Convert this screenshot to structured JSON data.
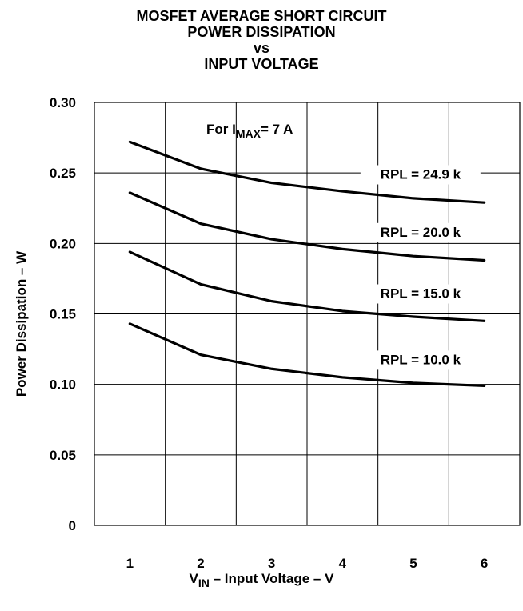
{
  "title": {
    "line1": "MOSFET AVERAGE SHORT CIRCUIT",
    "line2": "POWER DISSIPATION",
    "line3": "vs",
    "line4": "INPUT VOLTAGE"
  },
  "annotation": {
    "prefix": "For I",
    "subscript": "MAX",
    "suffix": "= 7 A"
  },
  "xlabel": {
    "main": "V",
    "subscript": "IN",
    "rest": " – Input Voltage – V"
  },
  "ylabel": "Power Dissipation – W",
  "chart_data": {
    "type": "line",
    "title": "MOSFET AVERAGE SHORT CIRCUIT POWER DISSIPATION vs INPUT VOLTAGE",
    "xlabel": "VIN – Input Voltage – V",
    "ylabel": "Power Dissipation – W",
    "xlim": [
      0.5,
      6.5
    ],
    "ylim": [
      0,
      0.3
    ],
    "grid": true,
    "x_ticks": [
      "1",
      "2",
      "3",
      "4",
      "5",
      "6"
    ],
    "y_ticks": [
      "0",
      "0.05",
      "0.10",
      "0.15",
      "0.20",
      "0.25",
      "0.30"
    ],
    "x": [
      1,
      2,
      3,
      4,
      5,
      6
    ],
    "series": [
      {
        "name": "RPL = 24.9 k",
        "values": [
          0.272,
          0.253,
          0.243,
          0.237,
          0.232,
          0.229
        ]
      },
      {
        "name": "RPL = 20.0 k",
        "values": [
          0.236,
          0.214,
          0.203,
          0.196,
          0.191,
          0.188
        ]
      },
      {
        "name": "RPL = 15.0 k",
        "values": [
          0.194,
          0.171,
          0.159,
          0.152,
          0.148,
          0.145
        ]
      },
      {
        "name": "RPL = 10.0 k",
        "values": [
          0.143,
          0.121,
          0.111,
          0.105,
          0.101,
          0.099
        ]
      }
    ]
  }
}
